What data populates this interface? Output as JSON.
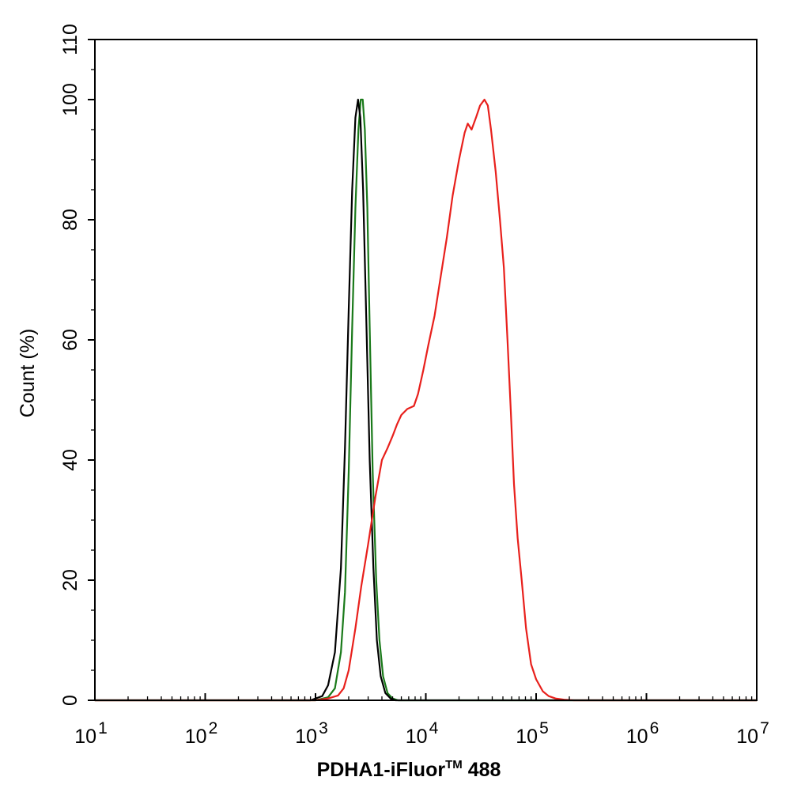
{
  "chart_data": {
    "type": "line",
    "title": "",
    "xlabel": "PDHA1-iFluor",
    "xlabel_superscript": "TM",
    "xlabel_suffix": " 488",
    "ylabel": "Count  (%)",
    "x_scale": "log",
    "xlim": [
      10,
      10000000
    ],
    "ylim": [
      0,
      110
    ],
    "grid": false,
    "legend": "none",
    "x_ticks": [
      {
        "base": "10",
        "exp": "1",
        "value": 10
      },
      {
        "base": "10",
        "exp": "2",
        "value": 100
      },
      {
        "base": "10",
        "exp": "3",
        "value": 1000
      },
      {
        "base": "10",
        "exp": "4",
        "value": 10000
      },
      {
        "base": "10",
        "exp": "5",
        "value": 100000
      },
      {
        "base": "10",
        "exp": "6",
        "value": 1000000
      },
      {
        "base": "10",
        "exp": "7",
        "value": 10000000
      }
    ],
    "y_ticks": [
      "0",
      "20",
      "40",
      "60",
      "80",
      "100",
      "110"
    ],
    "series": [
      {
        "color": "#1a7a1a",
        "points": [
          [
            10,
            0
          ],
          [
            1000,
            0
          ],
          [
            1300,
            0.5
          ],
          [
            1500,
            2
          ],
          [
            1700,
            8
          ],
          [
            1850,
            18
          ],
          [
            2000,
            38
          ],
          [
            2150,
            62
          ],
          [
            2300,
            82
          ],
          [
            2450,
            95
          ],
          [
            2570,
            100
          ],
          [
            2680,
            100
          ],
          [
            2800,
            95
          ],
          [
            2950,
            82
          ],
          [
            3100,
            62
          ],
          [
            3300,
            38
          ],
          [
            3550,
            20
          ],
          [
            3800,
            10
          ],
          [
            4100,
            4
          ],
          [
            4500,
            1.2
          ],
          [
            5000,
            0.3
          ],
          [
            5600,
            0
          ],
          [
            10000000,
            0
          ]
        ]
      },
      {
        "color": "#000000",
        "points": [
          [
            10,
            0
          ],
          [
            900,
            0
          ],
          [
            1150,
            0.7
          ],
          [
            1300,
            2.5
          ],
          [
            1500,
            8
          ],
          [
            1700,
            22
          ],
          [
            1850,
            42
          ],
          [
            2000,
            65
          ],
          [
            2150,
            85
          ],
          [
            2300,
            97
          ],
          [
            2430,
            100
          ],
          [
            2550,
            97
          ],
          [
            2700,
            85
          ],
          [
            2900,
            62
          ],
          [
            3100,
            40
          ],
          [
            3350,
            22
          ],
          [
            3600,
            10
          ],
          [
            3900,
            4
          ],
          [
            4300,
            1.2
          ],
          [
            4800,
            0.3
          ],
          [
            5300,
            0
          ],
          [
            10000000,
            0
          ]
        ]
      },
      {
        "color": "#e8201c",
        "points": [
          [
            10,
            0
          ],
          [
            1000,
            0
          ],
          [
            1300,
            0.3
          ],
          [
            1600,
            0.8
          ],
          [
            1800,
            2
          ],
          [
            2000,
            5
          ],
          [
            2300,
            12
          ],
          [
            2600,
            19
          ],
          [
            3000,
            26
          ],
          [
            3500,
            34
          ],
          [
            4000,
            40
          ],
          [
            4500,
            42
          ],
          [
            5000,
            44
          ],
          [
            5500,
            46
          ],
          [
            6000,
            47.5
          ],
          [
            6800,
            48.5
          ],
          [
            7800,
            49
          ],
          [
            8500,
            51
          ],
          [
            9500,
            55
          ],
          [
            10500,
            59
          ],
          [
            12000,
            64
          ],
          [
            13500,
            70
          ],
          [
            15500,
            77
          ],
          [
            17500,
            84
          ],
          [
            20000,
            90
          ],
          [
            22500,
            94.5
          ],
          [
            24000,
            96
          ],
          [
            26000,
            95
          ],
          [
            28500,
            97
          ],
          [
            31000,
            99
          ],
          [
            34000,
            100
          ],
          [
            36500,
            99
          ],
          [
            39000,
            95
          ],
          [
            43000,
            88
          ],
          [
            47000,
            80
          ],
          [
            51000,
            72
          ],
          [
            55000,
            60
          ],
          [
            59000,
            48
          ],
          [
            63000,
            36
          ],
          [
            68000,
            27
          ],
          [
            74000,
            20
          ],
          [
            81000,
            12
          ],
          [
            90000,
            6
          ],
          [
            100000,
            3.5
          ],
          [
            115000,
            1.5
          ],
          [
            130000,
            0.7
          ],
          [
            150000,
            0.3
          ],
          [
            180000,
            0.1
          ],
          [
            220000,
            0
          ],
          [
            10000000,
            0
          ]
        ]
      }
    ]
  }
}
